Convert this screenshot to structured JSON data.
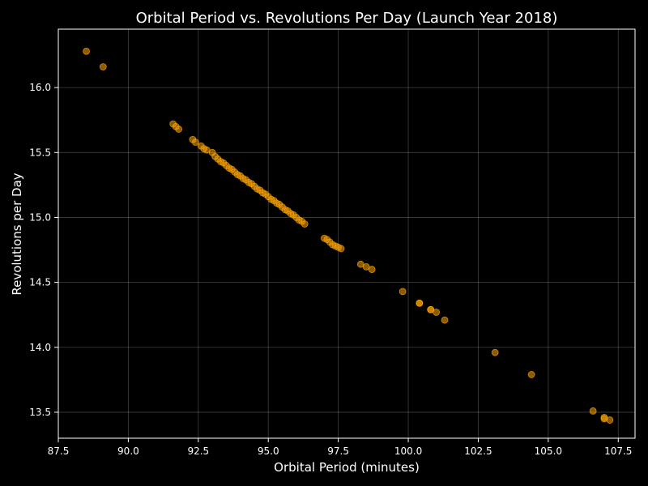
{
  "chart_data": {
    "type": "scatter",
    "title": "Orbital Period vs. Revolutions Per Day (Launch Year 2018)",
    "xlabel": "Orbital Period (minutes)",
    "ylabel": "Revolutions per Day",
    "xlim": [
      87.5,
      108.1
    ],
    "ylim": [
      13.3,
      16.45
    ],
    "xticks": [
      87.5,
      90.0,
      92.5,
      95.0,
      97.5,
      100.0,
      102.5,
      105.0,
      107.5
    ],
    "xtick_labels": [
      "87.5",
      "90.0",
      "92.5",
      "95.0",
      "97.5",
      "100.0",
      "102.5",
      "105.0",
      "107.5"
    ],
    "yticks": [
      13.5,
      14.0,
      14.5,
      15.0,
      15.5,
      16.0
    ],
    "ytick_labels": [
      "13.5",
      "14.0",
      "14.5",
      "15.0",
      "15.5",
      "16.0"
    ],
    "grid": true,
    "background": "#000000",
    "marker_color": "#ffa500",
    "marker_opacity": 0.55,
    "x": [
      88.5,
      89.1,
      91.6,
      91.7,
      91.8,
      92.3,
      92.4,
      92.6,
      92.7,
      92.8,
      93.0,
      93.1,
      93.2,
      93.3,
      93.4,
      93.5,
      93.6,
      93.7,
      93.8,
      93.9,
      94.0,
      94.1,
      94.2,
      94.3,
      94.4,
      94.5,
      94.6,
      94.7,
      94.8,
      94.9,
      95.0,
      95.1,
      95.2,
      95.3,
      95.4,
      95.5,
      95.6,
      95.7,
      95.8,
      95.9,
      96.0,
      96.1,
      96.2,
      96.3,
      97.0,
      97.1,
      97.2,
      97.3,
      97.4,
      97.5,
      97.6,
      98.3,
      98.5,
      98.7,
      99.8,
      100.4,
      100.4,
      100.8,
      100.8,
      101.0,
      101.3,
      103.1,
      104.4,
      106.6,
      107.0,
      107.0,
      107.2
    ],
    "y": [
      16.28,
      16.16,
      15.72,
      15.7,
      15.68,
      15.6,
      15.58,
      15.55,
      15.53,
      15.52,
      15.5,
      15.47,
      15.45,
      15.43,
      15.42,
      15.4,
      15.38,
      15.37,
      15.35,
      15.33,
      15.32,
      15.3,
      15.29,
      15.27,
      15.26,
      15.24,
      15.22,
      15.21,
      15.19,
      15.18,
      15.16,
      15.14,
      15.13,
      15.11,
      15.1,
      15.08,
      15.06,
      15.05,
      15.03,
      15.02,
      15.0,
      14.98,
      14.97,
      14.95,
      14.84,
      14.83,
      14.81,
      14.79,
      14.78,
      14.77,
      14.76,
      14.64,
      14.62,
      14.6,
      14.43,
      14.34,
      14.34,
      14.29,
      14.29,
      14.27,
      14.21,
      13.96,
      13.79,
      13.51,
      13.46,
      13.45,
      13.44
    ]
  }
}
